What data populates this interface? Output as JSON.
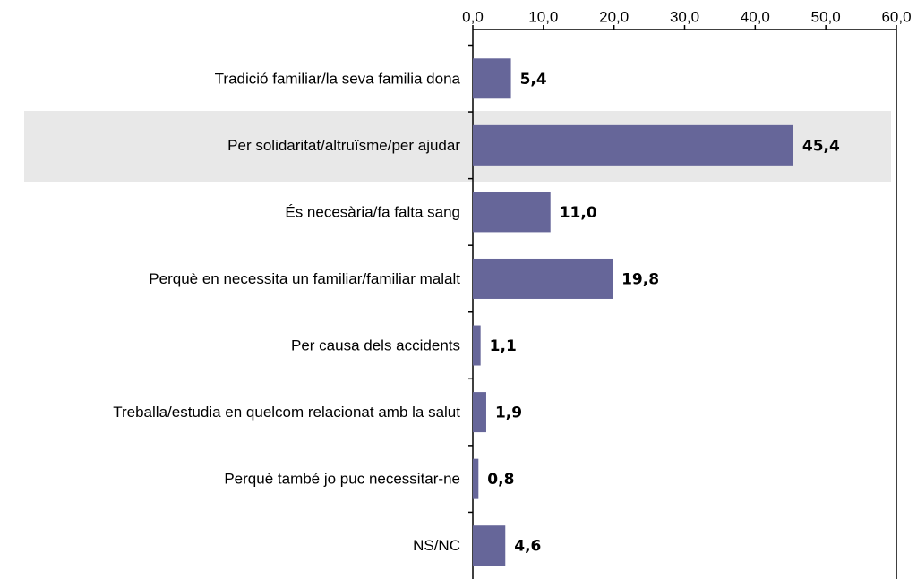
{
  "chart_data": {
    "type": "bar",
    "orientation": "horizontal",
    "categories": [
      "Tradició familiar/la seva familia dona",
      "Per solidaritat/altruïsme/per ajudar",
      "És necesària/fa falta sang",
      "Perquè en necessita un familiar/familiar malalt",
      "Per causa dels accidents",
      "Treballa/estudia en quelcom relacionat amb la salut",
      "Perquè també jo puc necessitar-ne",
      "NS/NC"
    ],
    "values": [
      5.4,
      45.4,
      11.0,
      19.8,
      1.1,
      1.9,
      0.8,
      4.6
    ],
    "value_labels": [
      "5,4",
      "45,4",
      "11,0",
      "19,8",
      "1,1",
      "1,9",
      "0,8",
      "4,6"
    ],
    "color": "#666699",
    "xlim": [
      0,
      60
    ],
    "xticks": [
      {
        "value": 0,
        "label": "0,0"
      },
      {
        "value": 10,
        "label": "10,0"
      },
      {
        "value": 20,
        "label": "20,0"
      },
      {
        "value": 30,
        "label": "30,0"
      },
      {
        "value": 40,
        "label": "40,0"
      },
      {
        "value": 50,
        "label": "50,0"
      },
      {
        "value": 60,
        "label": "60,0"
      }
    ]
  }
}
